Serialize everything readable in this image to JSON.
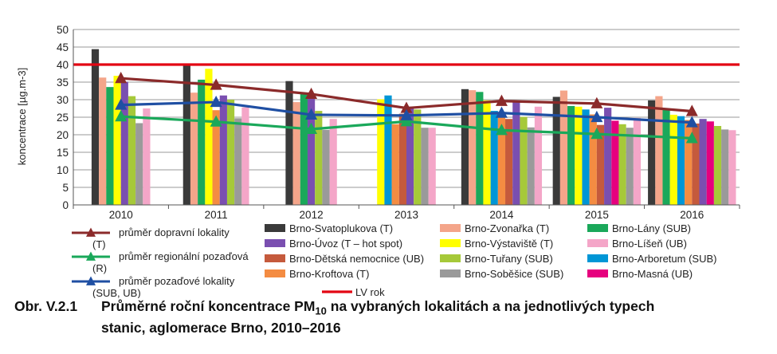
{
  "chart_data": {
    "type": "bar",
    "categories": [
      "2010",
      "2011",
      "2012",
      "2013",
      "2014",
      "2015",
      "2016"
    ],
    "ylabel": "koncentrace [µg.m-3]",
    "ylim": [
      0,
      50
    ],
    "yticks": [
      0,
      5,
      10,
      15,
      20,
      25,
      30,
      35,
      40,
      45,
      50
    ],
    "grid": true,
    "limit_line": {
      "name": "LV rok",
      "value": 40,
      "color": "#e30613"
    },
    "series": [
      {
        "name": "Brno-Svatoplukova (T)",
        "color": "#3a3a3a",
        "values": [
          44.4,
          39.9,
          35.3,
          null,
          33.0,
          30.8,
          29.8
        ]
      },
      {
        "name": "Brno-Zvonařka (T)",
        "color": "#f4a58a",
        "values": [
          36.3,
          32.0,
          29.3,
          null,
          32.7,
          32.6,
          31.0
        ]
      },
      {
        "name": "Brno-Lány (SUB)",
        "color": "#1aa85a",
        "values": [
          33.6,
          35.7,
          31.8,
          null,
          32.2,
          28.2,
          27.5
        ]
      },
      {
        "name": "Brno-Výstaviště (T)",
        "color": "#ffff00",
        "values": [
          36.8,
          38.8,
          null,
          30.1,
          29.8,
          28.0,
          25.7
        ]
      },
      {
        "name": "Brno-Arboretum (SUB)",
        "color": "#0096d6",
        "values": [
          null,
          null,
          null,
          31.2,
          26.8,
          27.2,
          25.3
        ]
      },
      {
        "name": "Brno-Kroftova (T)",
        "color": "#f48c42",
        "values": [
          null,
          27.0,
          null,
          23.0,
          26.3,
          25.8,
          24.2
        ]
      },
      {
        "name": "Brno-Dětská nemocnice (UB)",
        "color": "#c55a3c",
        "values": [
          null,
          null,
          null,
          26.0,
          24.5,
          22.8,
          23.2
        ]
      },
      {
        "name": "Brno-Úvoz (T – hot spot)",
        "color": "#7a4fb0",
        "values": [
          35.1,
          31.2,
          30.8,
          28.0,
          29.4,
          27.7,
          24.5
        ]
      },
      {
        "name": "Brno-Masná (UB)",
        "color": "#e6007e",
        "values": [
          null,
          null,
          null,
          null,
          null,
          24.0,
          23.8
        ]
      },
      {
        "name": "Brno-Tuřany (SUB)",
        "color": "#a6c939",
        "values": [
          31.0,
          30.0,
          26.8,
          27.2,
          25.1,
          23.0,
          22.5
        ]
      },
      {
        "name": "Brno-Soběšice (SUB)",
        "color": "#9a9a9a",
        "values": [
          23.3,
          24.7,
          21.4,
          22.0,
          22.1,
          22.0,
          21.5
        ]
      },
      {
        "name": "Brno-Líšeň (UB)",
        "color": "#f4a6c8",
        "values": [
          27.5,
          27.8,
          24.5,
          22.0,
          28.0,
          24.8,
          21.3
        ]
      }
    ],
    "lines": [
      {
        "name": "průměr dopravní lokality (T)",
        "color": "#8b2a2a",
        "values": [
          36.1,
          34.2,
          31.6,
          27.6,
          29.6,
          28.9,
          26.7
        ]
      },
      {
        "name": "průměr regionální pozaďová (R)",
        "color": "#1aa85a",
        "values": [
          25.2,
          23.7,
          21.6,
          23.8,
          21.3,
          20.2,
          19.0
        ]
      },
      {
        "name": "průměr pozaďové lokality (SUB, UB)",
        "color": "#1f4fa3",
        "values": [
          28.5,
          29.3,
          25.7,
          25.5,
          26.2,
          25.0,
          23.5
        ]
      }
    ]
  },
  "legend": {
    "avg_transport": {
      "line1": "průměr dopravní lokality",
      "line2": "(T)"
    },
    "avg_regional": {
      "line1": "průměr regionální pozaďová",
      "line2": "(R)"
    },
    "avg_background": {
      "line1": "průměr pozaďové lokality",
      "line2": "(SUB, UB)"
    },
    "limit_value": "LV rok"
  },
  "caption": {
    "number": "Obr. V.2.1",
    "text_before_sub": "Průměrné roční koncentrace PM",
    "subscript": "10",
    "text_after_sub": " na vybraných lokalitách a na jednotlivých typech",
    "line2": "stanic, aglomerace Brno, 2010–2016"
  }
}
